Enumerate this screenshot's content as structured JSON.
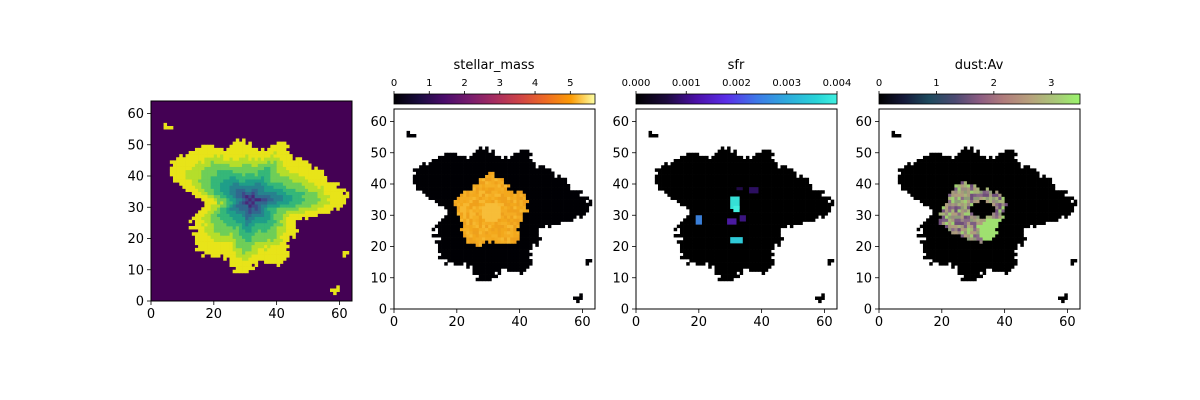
{
  "chart_data": [
    {
      "type": "heatmap",
      "title": "",
      "xlabel": "",
      "ylabel": "",
      "xlim": [
        0,
        64
      ],
      "ylim": [
        0,
        64
      ],
      "xticks": [
        0,
        20,
        40,
        60
      ],
      "yticks": [
        0,
        10,
        20,
        30,
        40,
        50,
        60
      ],
      "colormap": "viridis",
      "background_color": "#440154",
      "z_description": "segmentation map with concentric levels",
      "levels": [
        {
          "r": 1.0,
          "color": "#e8e419"
        },
        {
          "r": 0.78,
          "color": "#b5de2b"
        },
        {
          "r": 0.66,
          "color": "#6ece58"
        },
        {
          "r": 0.52,
          "color": "#35b779"
        },
        {
          "r": 0.4,
          "color": "#1f9e89"
        },
        {
          "r": 0.3,
          "color": "#26828e"
        },
        {
          "r": 0.21,
          "color": "#31688e"
        },
        {
          "r": 0.13,
          "color": "#3e4989"
        },
        {
          "r": 0.06,
          "color": "#482878"
        }
      ],
      "galaxy": {
        "center": [
          32,
          32
        ]
      }
    },
    {
      "type": "heatmap",
      "title": "stellar_mass",
      "xlabel": "",
      "ylabel": "",
      "xlim": [
        0,
        64
      ],
      "ylim": [
        0,
        64
      ],
      "xticks": [
        0,
        20,
        40,
        60
      ],
      "yticks": [
        0,
        10,
        20,
        30,
        40,
        50,
        60
      ],
      "colormap": "inferno",
      "colorbar": {
        "min": 0,
        "max": 5.7,
        "ticks": [
          "0",
          "1",
          "2",
          "3",
          "4",
          "5"
        ],
        "tick_values": [
          0,
          1,
          2,
          3,
          4,
          5
        ]
      },
      "background_color": "#000004",
      "blob": {
        "center": [
          31,
          31
        ],
        "radius": 11,
        "value": 4.6,
        "color": "#f3a81c"
      }
    },
    {
      "type": "heatmap",
      "title": "sfr",
      "xlabel": "",
      "ylabel": "",
      "xlim": [
        0,
        64
      ],
      "ylim": [
        0,
        64
      ],
      "xticks": [
        0,
        20,
        40,
        60
      ],
      "yticks": [
        0,
        10,
        20,
        30,
        40,
        50,
        60
      ],
      "colormap": "gist_ncar-like",
      "colorbar": {
        "min": 0,
        "max": 0.004,
        "ticks": [
          "0.000",
          "0.001",
          "0.002",
          "0.003",
          "0.004"
        ],
        "tick_values": [
          0,
          0.001,
          0.002,
          0.003,
          0.004
        ]
      },
      "background_color": "#000000",
      "patches": [
        {
          "x": 30,
          "y": 32,
          "w": 3,
          "h": 4,
          "value": 0.0035,
          "color": "#36e0d6"
        },
        {
          "x": 31,
          "y": 31,
          "w": 2,
          "h": 2,
          "value": 0.0036,
          "color": "#42f0e0"
        },
        {
          "x": 30,
          "y": 21,
          "w": 4,
          "h": 2,
          "value": 0.0034,
          "color": "#2fcad8"
        },
        {
          "x": 19,
          "y": 27,
          "w": 2,
          "h": 3,
          "value": 0.0019,
          "color": "#3a7fd8"
        },
        {
          "x": 29,
          "y": 27,
          "w": 3,
          "h": 2,
          "value": 0.001,
          "color": "#4a1aa0"
        },
        {
          "x": 33,
          "y": 28,
          "w": 2,
          "h": 2,
          "value": 0.0009,
          "color": "#3b1580"
        },
        {
          "x": 36,
          "y": 37,
          "w": 3,
          "h": 2,
          "value": 0.0008,
          "color": "#2c0f60"
        },
        {
          "x": 32,
          "y": 38,
          "w": 2,
          "h": 1,
          "value": 0.0006,
          "color": "#210a48"
        }
      ]
    },
    {
      "type": "heatmap",
      "title": "dust:Av",
      "xlabel": "",
      "ylabel": "",
      "xlim": [
        0,
        64
      ],
      "ylim": [
        0,
        64
      ],
      "xticks": [
        0,
        20,
        40,
        60
      ],
      "yticks": [
        0,
        10,
        20,
        30,
        40,
        50,
        60
      ],
      "colormap": "cubehelix-like",
      "colorbar": {
        "min": 0,
        "max": 3.5,
        "ticks": [
          "0",
          "1",
          "2",
          "3"
        ],
        "tick_values": [
          0,
          1,
          2,
          3
        ]
      },
      "background_color": "#000000",
      "ring": {
        "center": [
          30,
          31
        ],
        "outer_r": 10,
        "inner_r": 4,
        "value_range": [
          1.5,
          3.3
        ]
      }
    }
  ]
}
